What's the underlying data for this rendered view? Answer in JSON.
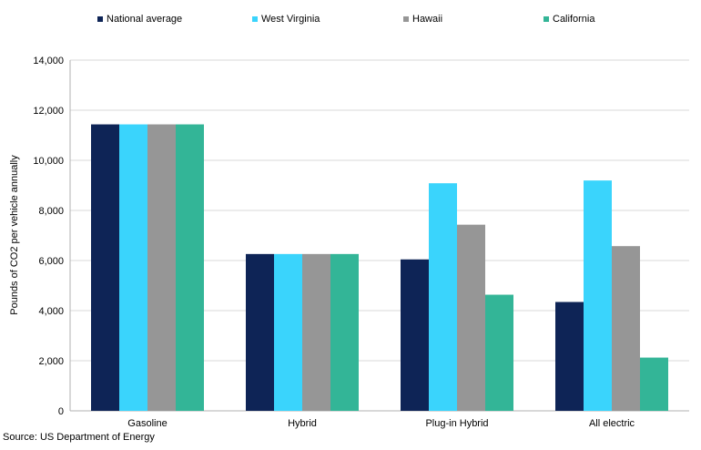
{
  "chart_data": {
    "type": "bar",
    "categories": [
      "Gasoline",
      "Hybrid",
      "Plug-in Hybrid",
      "All electric"
    ],
    "series": [
      {
        "name": "National average",
        "color": "#0e2456",
        "values": [
          11435,
          6260,
          6045,
          4345
        ]
      },
      {
        "name": "West Virginia",
        "color": "#3ad4fc",
        "values": [
          11435,
          6260,
          9085,
          9195
        ]
      },
      {
        "name": "Hawaii",
        "color": "#969696",
        "values": [
          11435,
          6260,
          7430,
          6575
        ]
      },
      {
        "name": "California",
        "color": "#33b597",
        "values": [
          11435,
          6260,
          4635,
          2125
        ]
      }
    ],
    "ylabel": "Pounds of CO2 per vehicle annually",
    "ylim": [
      0,
      14000
    ],
    "yticks": [
      "0",
      "2,000",
      "4,000",
      "6,000",
      "8,000",
      "10,000",
      "12,000",
      "14,000"
    ],
    "grid": true,
    "legend": "top"
  },
  "source": "Source: US Department of Energy"
}
